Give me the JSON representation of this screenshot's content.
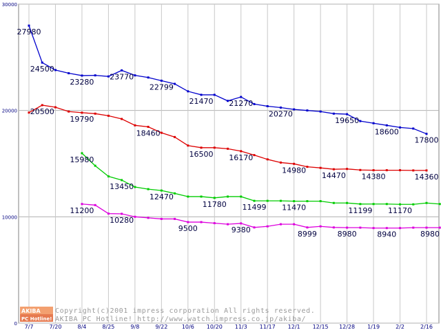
{
  "chart_data": {
    "type": "line",
    "ylim": [
      0,
      30000
    ],
    "yticks": [
      "0",
      "10000",
      "20000",
      "30000"
    ],
    "grid": true,
    "categories": [
      "7/7",
      "7/20",
      "8/4",
      "8/25",
      "9/8",
      "9/22",
      "10/6",
      "10/20",
      "11/3",
      "11/17",
      "12/1",
      "12/15",
      "12/28",
      "1/19",
      "2/2",
      "2/16"
    ],
    "series": [
      {
        "color": "#0000cc",
        "points": [
          [
            0,
            27980
          ],
          [
            1,
            24500
          ],
          [
            2,
            23800
          ],
          [
            3,
            23500
          ],
          [
            4,
            23280
          ],
          [
            5,
            23300
          ],
          [
            6,
            23200
          ],
          [
            7,
            23770
          ],
          [
            8,
            23300
          ],
          [
            9,
            23100
          ],
          [
            10,
            22799
          ],
          [
            11,
            22500
          ],
          [
            12,
            21800
          ],
          [
            13,
            21470
          ],
          [
            14,
            21470
          ],
          [
            15,
            20900
          ],
          [
            16,
            21270
          ],
          [
            17,
            20600
          ],
          [
            18,
            20400
          ],
          [
            19,
            20270
          ],
          [
            20,
            20100
          ],
          [
            21,
            20000
          ],
          [
            22,
            19900
          ],
          [
            23,
            19700
          ],
          [
            24,
            19650
          ],
          [
            25,
            19000
          ],
          [
            26,
            18800
          ],
          [
            27,
            18600
          ],
          [
            28,
            18400
          ],
          [
            29,
            18300
          ],
          [
            30,
            17800
          ]
        ],
        "labels": [
          {
            "i": 0,
            "text": "27980"
          },
          {
            "i": 1,
            "text": "24500"
          },
          {
            "i": 4,
            "text": "23280"
          },
          {
            "i": 7,
            "text": "23770"
          },
          {
            "i": 10,
            "text": "22799"
          },
          {
            "i": 13,
            "text": "21470"
          },
          {
            "i": 16,
            "text": "21270"
          },
          {
            "i": 19,
            "text": "20270"
          },
          {
            "i": 24,
            "text": "19650"
          },
          {
            "i": 27,
            "text": "18600"
          },
          {
            "i": 30,
            "text": "17800"
          }
        ]
      },
      {
        "color": "#dd0000",
        "points": [
          [
            0,
            19800
          ],
          [
            1,
            20500
          ],
          [
            2,
            20300
          ],
          [
            3,
            19900
          ],
          [
            4,
            19790
          ],
          [
            5,
            19700
          ],
          [
            6,
            19500
          ],
          [
            7,
            19200
          ],
          [
            8,
            18600
          ],
          [
            9,
            18460
          ],
          [
            10,
            17900
          ],
          [
            11,
            17500
          ],
          [
            12,
            16700
          ],
          [
            13,
            16500
          ],
          [
            14,
            16500
          ],
          [
            15,
            16400
          ],
          [
            16,
            16170
          ],
          [
            17,
            15800
          ],
          [
            18,
            15400
          ],
          [
            19,
            15100
          ],
          [
            20,
            14980
          ],
          [
            21,
            14700
          ],
          [
            22,
            14600
          ],
          [
            23,
            14470
          ],
          [
            24,
            14500
          ],
          [
            25,
            14400
          ],
          [
            26,
            14380
          ],
          [
            27,
            14380
          ],
          [
            28,
            14380
          ],
          [
            29,
            14360
          ],
          [
            30,
            14360
          ]
        ],
        "labels": [
          {
            "i": 1,
            "text": "20500"
          },
          {
            "i": 4,
            "text": "19790"
          },
          {
            "i": 9,
            "text": "18460"
          },
          {
            "i": 13,
            "text": "16500"
          },
          {
            "i": 16,
            "text": "16170"
          },
          {
            "i": 20,
            "text": "14980"
          },
          {
            "i": 23,
            "text": "14470"
          },
          {
            "i": 26,
            "text": "14380"
          },
          {
            "i": 30,
            "text": "14360"
          }
        ]
      },
      {
        "color": "#00cc00",
        "points": [
          [
            4,
            15980
          ],
          [
            5,
            14800
          ],
          [
            6,
            13800
          ],
          [
            7,
            13450
          ],
          [
            8,
            12800
          ],
          [
            9,
            12600
          ],
          [
            10,
            12470
          ],
          [
            11,
            12200
          ],
          [
            12,
            11900
          ],
          [
            13,
            11900
          ],
          [
            14,
            11780
          ],
          [
            15,
            11900
          ],
          [
            16,
            11900
          ],
          [
            17,
            11499
          ],
          [
            18,
            11500
          ],
          [
            19,
            11500
          ],
          [
            20,
            11470
          ],
          [
            21,
            11470
          ],
          [
            22,
            11470
          ],
          [
            23,
            11300
          ],
          [
            24,
            11300
          ],
          [
            25,
            11199
          ],
          [
            26,
            11200
          ],
          [
            27,
            11200
          ],
          [
            28,
            11170
          ],
          [
            29,
            11170
          ],
          [
            30,
            11300
          ],
          [
            31,
            11200
          ]
        ],
        "labels": [
          {
            "i": 0,
            "text": "15980"
          },
          {
            "i": 3,
            "text": "13450"
          },
          {
            "i": 6,
            "text": "12470"
          },
          {
            "i": 10,
            "text": "11780"
          },
          {
            "i": 13,
            "text": "11499"
          },
          {
            "i": 16,
            "text": "11470"
          },
          {
            "i": 21,
            "text": "11199"
          },
          {
            "i": 24,
            "text": "11170"
          }
        ]
      },
      {
        "color": "#dd00dd",
        "points": [
          [
            4,
            11200
          ],
          [
            5,
            11100
          ],
          [
            6,
            10300
          ],
          [
            7,
            10280
          ],
          [
            8,
            10000
          ],
          [
            9,
            9900
          ],
          [
            10,
            9800
          ],
          [
            11,
            9800
          ],
          [
            12,
            9500
          ],
          [
            13,
            9500
          ],
          [
            14,
            9400
          ],
          [
            15,
            9300
          ],
          [
            16,
            9380
          ],
          [
            17,
            9000
          ],
          [
            18,
            9100
          ],
          [
            19,
            9300
          ],
          [
            20,
            9300
          ],
          [
            21,
            8999
          ],
          [
            22,
            9100
          ],
          [
            23,
            9000
          ],
          [
            24,
            8980
          ],
          [
            25,
            8980
          ],
          [
            26,
            8940
          ],
          [
            27,
            8940
          ],
          [
            28,
            8940
          ],
          [
            29,
            8980
          ],
          [
            30,
            8980
          ],
          [
            31,
            8980
          ]
        ],
        "labels": [
          {
            "i": 0,
            "text": "11200"
          },
          {
            "i": 3,
            "text": "10280"
          },
          {
            "i": 8,
            "text": "9500"
          },
          {
            "i": 12,
            "text": "9380"
          },
          {
            "i": 17,
            "text": "8999"
          },
          {
            "i": 20,
            "text": "8980"
          },
          {
            "i": 23,
            "text": "8940"
          },
          {
            "i": 27,
            "text": "8980"
          }
        ]
      }
    ]
  },
  "logo": {
    "line1": "AKIBA",
    "line2": "PC Hotline!"
  },
  "copyright": {
    "line1": "Copyright(c)2001 impress corporation All rights reserved.",
    "line2": "AKIBA PC Hotline!  http://www.watch.impress.co.jp/akiba/"
  }
}
